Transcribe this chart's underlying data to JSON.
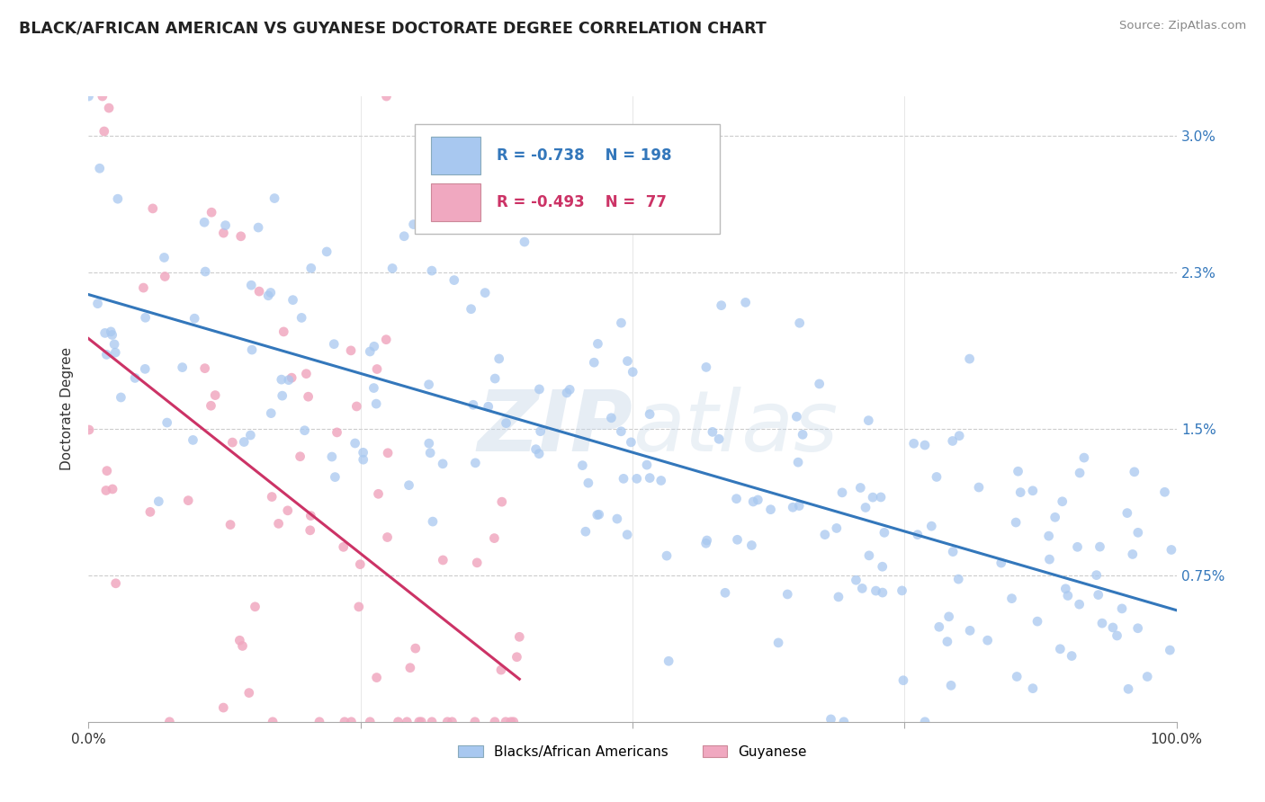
{
  "title": "BLACK/AFRICAN AMERICAN VS GUYANESE DOCTORATE DEGREE CORRELATION CHART",
  "source": "Source: ZipAtlas.com",
  "ylabel": "Doctorate Degree",
  "y_ticks": [
    0.75,
    1.5,
    2.3,
    3.0
  ],
  "y_tick_labels": [
    "0.75%",
    "1.5%",
    "2.3%",
    "3.0%"
  ],
  "legend": {
    "blue_R": "-0.738",
    "blue_N": "198",
    "pink_R": "-0.493",
    "pink_N": "77"
  },
  "blue_color": "#a8c8f0",
  "pink_color": "#f0a8c0",
  "blue_line_color": "#3377bb",
  "pink_line_color": "#cc3366",
  "watermark": "ZIPAtlas",
  "background_color": "#ffffff",
  "legend_label_blue": "Blacks/African Americans",
  "legend_label_pink": "Guyanese",
  "xlim": [
    0,
    100
  ],
  "ylim": [
    0,
    3.2
  ]
}
